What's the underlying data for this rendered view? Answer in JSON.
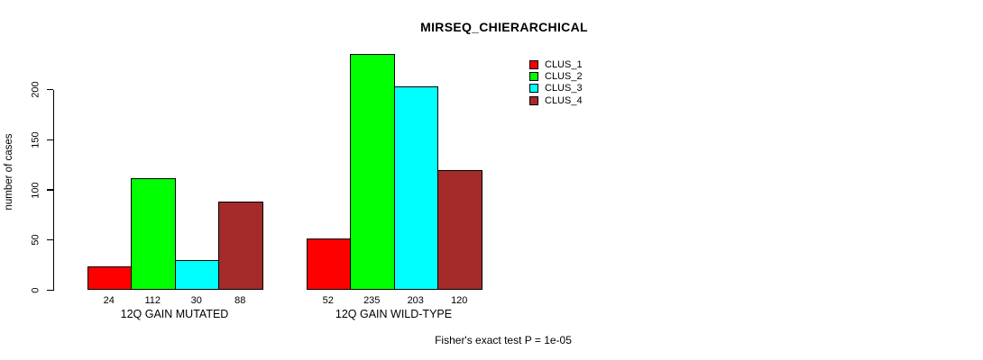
{
  "chart_data": {
    "type": "bar",
    "title": "MIRSEQ_CHIERARCHICAL",
    "xlabel": "",
    "ylabel": "number of cases",
    "categories": [
      "12Q GAIN MUTATED",
      "12Q GAIN WILD-TYPE"
    ],
    "series": [
      {
        "name": "CLUS_1",
        "color": "#FF0000",
        "values": [
          24,
          52
        ]
      },
      {
        "name": "CLUS_2",
        "color": "#00FF00",
        "values": [
          112,
          235
        ]
      },
      {
        "name": "CLUS_3",
        "color": "#00FFFF",
        "values": [
          30,
          203
        ]
      },
      {
        "name": "CLUS_4",
        "color": "#A52A2A",
        "values": [
          88,
          120
        ]
      }
    ],
    "yticks": [
      0,
      50,
      100,
      150,
      200
    ],
    "ylim": [
      0,
      240
    ],
    "grid": false,
    "bar_value_labels_shown": true,
    "legend_position": "top-right",
    "legend_entries": [
      "CLUS_1",
      "CLUS_2",
      "CLUS_3",
      "CLUS_4"
    ],
    "annotation": "Fisher's exact test P = 1e-05"
  }
}
